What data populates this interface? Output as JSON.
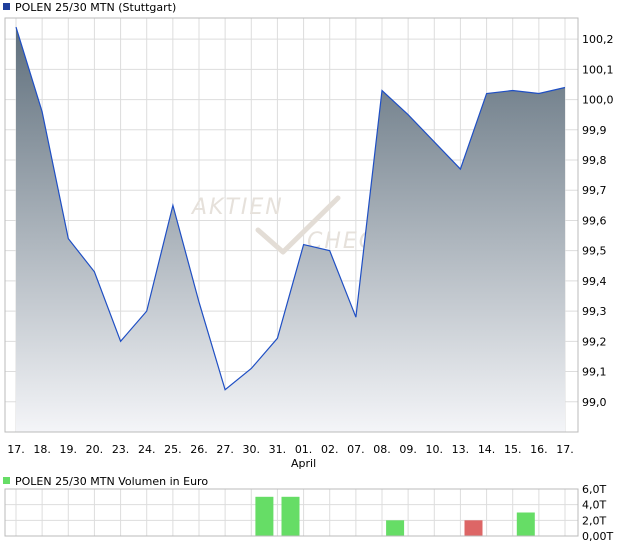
{
  "chart_data": [
    {
      "type": "area",
      "legend": "POLEN 25/30 MTN (Stuttgart)",
      "x": [
        "17.",
        "18.",
        "19.",
        "20.",
        "23.",
        "24.",
        "25.",
        "26.",
        "27.",
        "30.",
        "31.",
        "01.",
        "02.",
        "07.",
        "08.",
        "09.",
        "10.",
        "13.",
        "14.",
        "15.",
        "16.",
        "17."
      ],
      "month_label": "April",
      "month_label_index": 11,
      "values": [
        100.24,
        99.96,
        99.54,
        99.43,
        99.2,
        99.3,
        99.65,
        99.33,
        99.04,
        99.11,
        99.21,
        99.52,
        99.5,
        99.28,
        100.03,
        99.95,
        99.86,
        99.77,
        100.02,
        100.03,
        100.02,
        100.04
      ],
      "ylim": [
        98.9,
        100.27
      ],
      "yticks": [
        99.0,
        99.1,
        99.2,
        99.3,
        99.4,
        99.5,
        99.6,
        99.7,
        99.8,
        99.9,
        100.0,
        100.1,
        100.2
      ],
      "ytick_labels": [
        "99,0",
        "99,1",
        "99,2",
        "99,3",
        "99,4",
        "99,5",
        "99,6",
        "99,7",
        "99,8",
        "99,9",
        "100,0",
        "100,1",
        "100,2"
      ],
      "grid": true,
      "watermark_text": [
        "AKTIEN",
        "CHECK"
      ],
      "colors": {
        "line": "#1f4fc4",
        "fill_top": "#5f6f7c",
        "fill_bottom": "#f4f5f8",
        "legend_marker": "#1f3f9c",
        "grid": "#dddddd"
      }
    },
    {
      "type": "bar",
      "legend": "POLEN 25/30 MTN Volumen in Euro",
      "values": [
        0,
        0,
        0,
        0,
        0,
        0,
        0,
        0,
        0,
        5.0,
        5.0,
        0,
        0,
        0,
        2.0,
        0,
        0,
        2.0,
        0,
        3.0,
        0,
        0
      ],
      "bar_colors": [
        "",
        "",
        "",
        "",
        "",
        "",
        "",
        "",
        "",
        "#66dd66",
        "#66dd66",
        "",
        "",
        "",
        "#66dd66",
        "",
        "",
        "#dd6666",
        "",
        "#66dd66",
        "",
        ""
      ],
      "ylim": [
        0,
        6.0
      ],
      "yticks": [
        0,
        2.0,
        4.0,
        6.0
      ],
      "ytick_labels": [
        "0,00T",
        "2,0T",
        "4,0T",
        "6,0T"
      ],
      "grid": true,
      "colors": {
        "legend_marker": "#66dd66",
        "grid": "#dddddd"
      }
    }
  ]
}
